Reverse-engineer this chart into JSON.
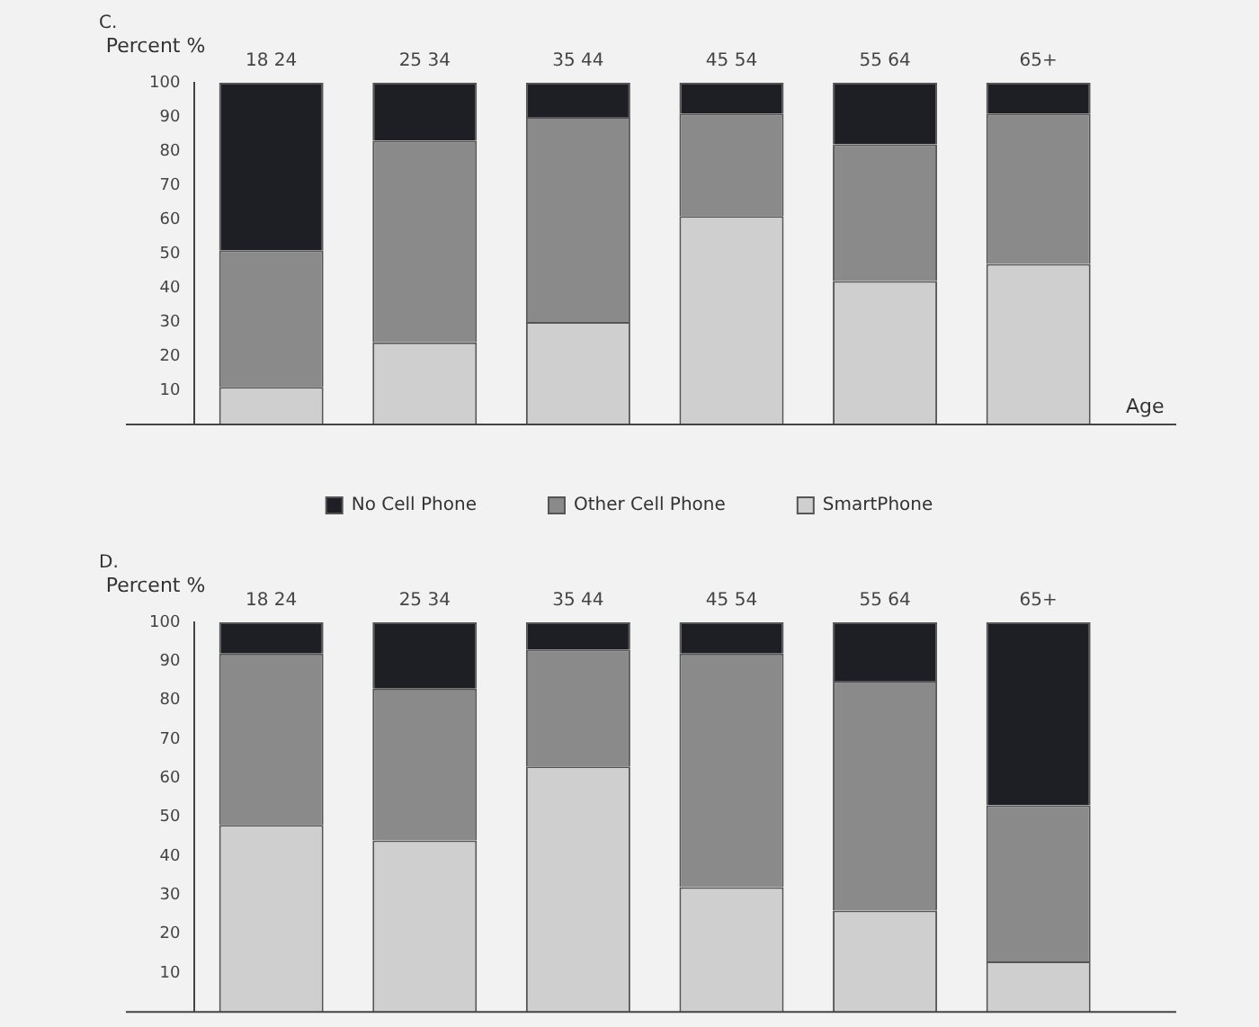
{
  "chart_data": [
    {
      "type": "bar",
      "title": "C.",
      "ylabel": "Percent %",
      "xlabel": "Age",
      "categories": [
        "18 24",
        "25 34",
        "35 44",
        "45 54",
        "55 64",
        "65+"
      ],
      "stacked": true,
      "ylim": [
        0,
        100
      ],
      "yticks": [
        10,
        20,
        30,
        40,
        50,
        60,
        70,
        80,
        90,
        100
      ],
      "legend": "bottom",
      "series": [
        {
          "name": "SmartPhone",
          "color": "#cfcfcf",
          "values": [
            11,
            24,
            30,
            61,
            42,
            47
          ]
        },
        {
          "name": "Other Cell Phone",
          "color": "#8a8a8a",
          "values": [
            40,
            59,
            60,
            30,
            40,
            44
          ]
        },
        {
          "name": "No Cell Phone",
          "color": "#1e1f24",
          "values": [
            49,
            17,
            10,
            9,
            18,
            9
          ]
        }
      ]
    },
    {
      "type": "bar",
      "title": "D.",
      "ylabel": "Percent %",
      "categories": [
        "18 24",
        "25 34",
        "35 44",
        "45 54",
        "55 64",
        "65+"
      ],
      "stacked": true,
      "ylim": [
        0,
        100
      ],
      "yticks": [
        10,
        20,
        30,
        40,
        50,
        60,
        70,
        80,
        90,
        100
      ],
      "series": [
        {
          "color": "#cfcfcf",
          "values": [
            48,
            44,
            63,
            32,
            26,
            13
          ]
        },
        {
          "color": "#8a8a8a",
          "values": [
            44,
            39,
            30,
            60,
            59,
            40
          ]
        },
        {
          "color": "#1e1f24",
          "values": [
            8,
            17,
            7,
            8,
            15,
            47
          ]
        }
      ]
    }
  ]
}
